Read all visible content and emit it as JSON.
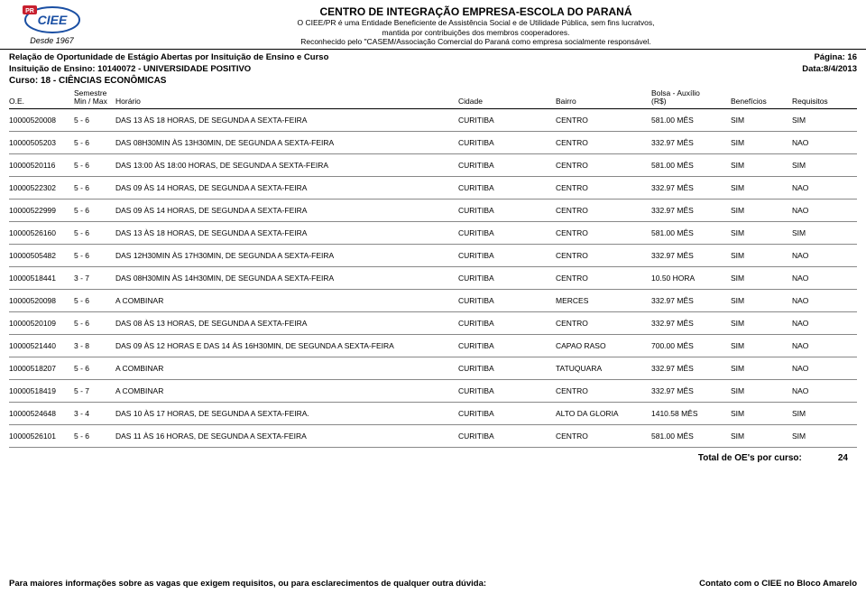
{
  "header": {
    "desde": "Desde 1967",
    "title": "CENTRO DE INTEGRAÇÃO EMPRESA-ESCOLA DO PARANÁ",
    "line1": "O CIEE/PR é uma Entidade Beneficiente de Assistência Social e de Utilidade Pública, sem fins lucratvos,",
    "line2": "mantida por contribuições dos membros cooperadores.",
    "line3": "Reconhecido pelo \"CASEM/Associação Comercial do Paraná como empresa socialmente responsável."
  },
  "meta": {
    "relacao": "Relação de Oportunidade de Estágio Abertas por Insituição de Ensino e Curso",
    "pagina": "Página: 16",
    "instituicao": "Insituição de Ensino: 10140072 - UNIVERSIDADE POSITIVO",
    "data": "Data:8/4/2013",
    "curso": "Curso: 18 - CIÊNCIAS ECONÔMICAS"
  },
  "columns": {
    "oe": "O.E.",
    "sem_top": "Semestre",
    "sem_bot": "Min / Max",
    "hor": "Horário",
    "cid": "Cidade",
    "bai": "Bairro",
    "bol_top": "Bolsa - Auxílio",
    "bol_bot": "(R$)",
    "ben": "Benefícios",
    "req": "Requisitos"
  },
  "rows": [
    {
      "oe": "10000520008",
      "sem": "5 - 6",
      "hor": "DAS 13 ÀS 18 HORAS, DE SEGUNDA A SEXTA-FEIRA",
      "cid": "CURITIBA",
      "bai": "CENTRO",
      "bol": "581.00 MÊS",
      "ben": "SIM",
      "req": "SIM"
    },
    {
      "oe": "10000505203",
      "sem": "5 - 6",
      "hor": "DAS 08H30MIN ÀS 13H30MIN, DE SEGUNDA A SEXTA-FEIRA",
      "cid": "CURITIBA",
      "bai": "CENTRO",
      "bol": "332.97 MÊS",
      "ben": "SIM",
      "req": "NAO"
    },
    {
      "oe": "10000520116",
      "sem": "5 - 6",
      "hor": "DAS 13:00 ÀS 18:00 HORAS, DE SEGUNDA A SEXTA-FEIRA",
      "cid": "CURITIBA",
      "bai": "CENTRO",
      "bol": "581.00 MÊS",
      "ben": "SIM",
      "req": "SIM"
    },
    {
      "oe": "10000522302",
      "sem": "5 - 6",
      "hor": "DAS 09 ÀS 14 HORAS, DE SEGUNDA A SEXTA-FEIRA",
      "cid": "CURITIBA",
      "bai": "CENTRO",
      "bol": "332.97 MÊS",
      "ben": "SIM",
      "req": "NAO"
    },
    {
      "oe": "10000522999",
      "sem": "5 - 6",
      "hor": "DAS 09 ÀS 14 HORAS, DE SEGUNDA A SEXTA-FEIRA",
      "cid": "CURITIBA",
      "bai": "CENTRO",
      "bol": "332.97 MÊS",
      "ben": "SIM",
      "req": "NAO"
    },
    {
      "oe": "10000526160",
      "sem": "5 - 6",
      "hor": "DAS 13 ÀS 18 HORAS, DE SEGUNDA A SEXTA-FEIRA",
      "cid": "CURITIBA",
      "bai": "CENTRO",
      "bol": "581.00 MÊS",
      "ben": "SIM",
      "req": "SIM"
    },
    {
      "oe": "10000505482",
      "sem": "5 - 6",
      "hor": "DAS 12H30MIN ÀS 17H30MIN, DE SEGUNDA A SEXTA-FEIRA",
      "cid": "CURITIBA",
      "bai": "CENTRO",
      "bol": "332.97 MÊS",
      "ben": "SIM",
      "req": "NAO"
    },
    {
      "oe": "10000518441",
      "sem": "3 - 7",
      "hor": "DAS 08H30MIN ÀS 14H30MIN, DE SEGUNDA A SEXTA-FEIRA",
      "cid": "CURITIBA",
      "bai": "CENTRO",
      "bol": "10.50 HORA",
      "ben": "SIM",
      "req": "NAO"
    },
    {
      "oe": "10000520098",
      "sem": "5 - 6",
      "hor": "A COMBINAR",
      "cid": "CURITIBA",
      "bai": "MERCES",
      "bol": "332.97 MÊS",
      "ben": "SIM",
      "req": "NAO"
    },
    {
      "oe": "10000520109",
      "sem": "5 - 6",
      "hor": "DAS 08 ÀS 13 HORAS, DE SEGUNDA A SEXTA-FEIRA",
      "cid": "CURITIBA",
      "bai": "CENTRO",
      "bol": "332.97 MÊS",
      "ben": "SIM",
      "req": "NAO"
    },
    {
      "oe": "10000521440",
      "sem": "3 - 8",
      "hor": "DAS 09 ÀS 12 HORAS E DAS 14 ÀS 16H30MIN, DE SEGUNDA A SEXTA-FEIRA",
      "cid": "CURITIBA",
      "bai": "CAPAO RASO",
      "bol": "700.00 MÊS",
      "ben": "SIM",
      "req": "NAO"
    },
    {
      "oe": "10000518207",
      "sem": "5 - 6",
      "hor": "A COMBINAR",
      "cid": "CURITIBA",
      "bai": "TATUQUARA",
      "bol": "332.97 MÊS",
      "ben": "SIM",
      "req": "NAO"
    },
    {
      "oe": "10000518419",
      "sem": "5 - 7",
      "hor": "A COMBINAR",
      "cid": "CURITIBA",
      "bai": "CENTRO",
      "bol": "332.97 MÊS",
      "ben": "SIM",
      "req": "NAO"
    },
    {
      "oe": "10000524648",
      "sem": "3 - 4",
      "hor": "DAS 10 ÀS 17 HORAS, DE SEGUNDA A SEXTA-FEIRA.",
      "cid": "CURITIBA",
      "bai": "ALTO DA GLORIA",
      "bol": "1410.58 MÊS",
      "ben": "SIM",
      "req": "SIM"
    },
    {
      "oe": "10000526101",
      "sem": "5 - 6",
      "hor": "DAS 11 ÀS 16 HORAS, DE SEGUNDA A SEXTA-FEIRA",
      "cid": "CURITIBA",
      "bai": "CENTRO",
      "bol": "581.00 MÊS",
      "ben": "SIM",
      "req": "SIM"
    }
  ],
  "total": {
    "label": "Total de OE's por curso:",
    "value": "24"
  },
  "footer": {
    "left": "Para maiores informações sobre as vagas que exigem requisitos, ou para esclarecimentos de qualquer outra dúvida:",
    "right": "Contato com o CIEE no Bloco Amarelo"
  },
  "colors": {
    "logo_blue": "#1a4fa3",
    "logo_red": "#c8202f",
    "border": "#000000",
    "row_border": "#888888"
  }
}
